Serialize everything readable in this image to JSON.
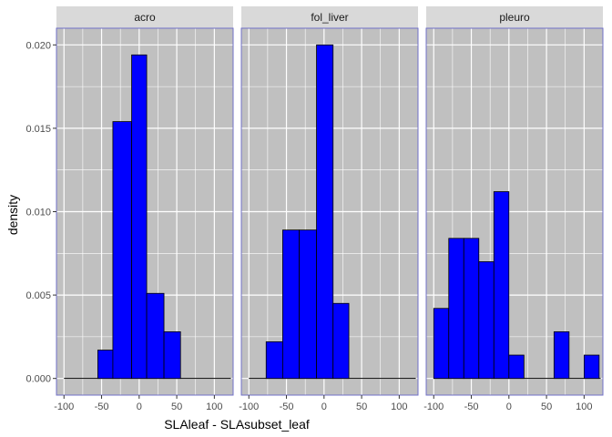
{
  "chart_data": {
    "type": "bar",
    "subtype": "faceted-histogram",
    "xlabel": "SLAleaf - SLAsubset_leaf",
    "ylabel": "density",
    "xlim": [
      -110,
      125
    ],
    "ylim": [
      -0.001,
      0.021
    ],
    "x_ticks": [
      -100,
      -50,
      0,
      50,
      100
    ],
    "y_ticks": [
      0.0,
      0.005,
      0.01,
      0.015,
      0.02
    ],
    "y_tick_labels": [
      "0.000",
      "0.005",
      "0.010",
      "0.015",
      "0.020"
    ],
    "grid": true,
    "colors": {
      "panel_background": "#c0c0c0",
      "panel_border": "#7070c8",
      "strip_background": "#d9d9d9",
      "bar_fill": "#0000ff",
      "bar_outline": "#000000",
      "grid": "#ffffff"
    },
    "panels": [
      {
        "name": "acro",
        "baseline": [
          -100,
          122
        ],
        "bars": [
          {
            "x0": -55,
            "x1": -35,
            "density": 0.0017
          },
          {
            "x0": -35,
            "x1": -10,
            "density": 0.0154
          },
          {
            "x0": -10,
            "x1": 10,
            "density": 0.0194
          },
          {
            "x0": 10,
            "x1": 33,
            "density": 0.0051
          },
          {
            "x0": 33,
            "x1": 55,
            "density": 0.0028
          }
        ]
      },
      {
        "name": "fol_liver",
        "baseline": [
          -100,
          122
        ],
        "bars": [
          {
            "x0": -77,
            "x1": -55,
            "density": 0.0022
          },
          {
            "x0": -55,
            "x1": -33,
            "density": 0.0089
          },
          {
            "x0": -33,
            "x1": -10,
            "density": 0.0089
          },
          {
            "x0": -10,
            "x1": 12,
            "density": 0.02
          },
          {
            "x0": 12,
            "x1": 33,
            "density": 0.0045
          }
        ]
      },
      {
        "name": "pleuro",
        "baseline": [
          -100,
          122
        ],
        "bars": [
          {
            "x0": -100,
            "x1": -80,
            "density": 0.0042
          },
          {
            "x0": -80,
            "x1": -60,
            "density": 0.0084
          },
          {
            "x0": -60,
            "x1": -40,
            "density": 0.0084
          },
          {
            "x0": -40,
            "x1": -20,
            "density": 0.007
          },
          {
            "x0": -20,
            "x1": 0,
            "density": 0.0112
          },
          {
            "x0": 0,
            "x1": 20,
            "density": 0.0014
          },
          {
            "x0": 20,
            "x1": 40,
            "density": 0.0
          },
          {
            "x0": 40,
            "x1": 60,
            "density": 0.0
          },
          {
            "x0": 60,
            "x1": 80,
            "density": 0.0028
          },
          {
            "x0": 80,
            "x1": 100,
            "density": 0.0
          },
          {
            "x0": 100,
            "x1": 120,
            "density": 0.0014
          }
        ]
      }
    ]
  }
}
